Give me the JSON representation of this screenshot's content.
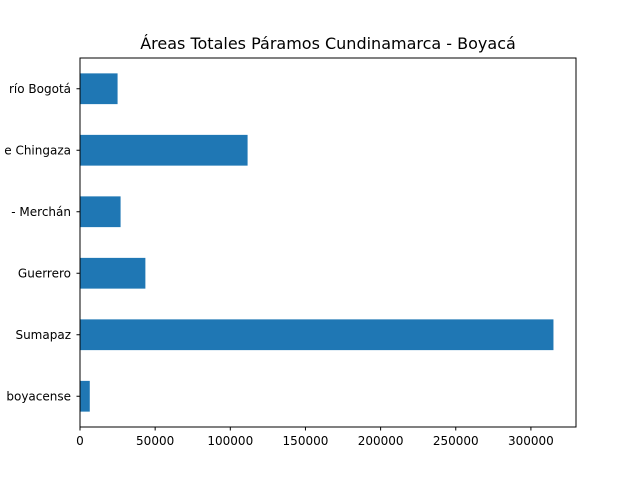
{
  "chart_data": {
    "type": "bar",
    "orientation": "horizontal",
    "title": "Áreas Totales Páramos Cundinamarca - Boyacá",
    "xlabel": "",
    "ylabel": "",
    "categories": [
      "río Bogotá",
      "e Chingaza",
      "- Merchán",
      "Guerrero",
      "Sumapaz",
      "boyacense"
    ],
    "values": [
      25000,
      111500,
      27000,
      43500,
      315000,
      6500
    ],
    "xlim": [
      0,
      330000
    ],
    "xticks": [
      0,
      50000,
      100000,
      150000,
      200000,
      250000,
      300000
    ],
    "bar_color": "#1f77b4",
    "grid": false,
    "legend": false
  }
}
